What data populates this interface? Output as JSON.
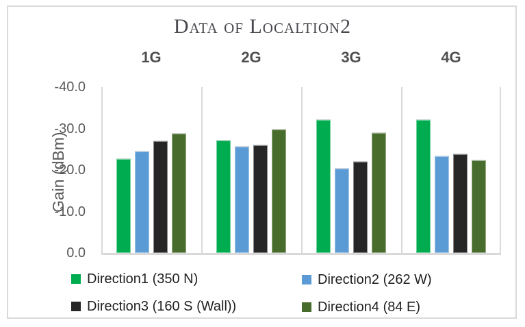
{
  "chart_data": {
    "type": "bar",
    "title": "Data of Localtion2",
    "ylabel": "Gain (dBm)",
    "xlabel": "",
    "categories": [
      "1G",
      "2G",
      "3G",
      "4G"
    ],
    "series": [
      {
        "name": "Direction1 (350 N)",
        "color": "#00AC50",
        "values": [
          -23.0,
          -27.5,
          -32.5,
          -32.5
        ]
      },
      {
        "name": "Direction2 (262 W)",
        "color": "#5B9BD5",
        "values": [
          -24.8,
          -26.0,
          -20.7,
          -23.6
        ]
      },
      {
        "name": "Direction3 (160 S (Wall))",
        "color": "#262626",
        "values": [
          -27.4,
          -26.3,
          -22.4,
          -24.1
        ]
      },
      {
        "name": "Direction4 (84 E)",
        "color": "#476C2B",
        "values": [
          -29.1,
          -30.2,
          -29.3,
          -22.6
        ]
      }
    ],
    "y_ticks": [
      "-40.0",
      "-30.0",
      "-20.0",
      "-10.0",
      "0.0"
    ],
    "ylim": [
      0,
      -40
    ],
    "axis_inverted": true,
    "grid": false,
    "legend_position": "bottom",
    "legend_columns": 2
  },
  "colors": {
    "frame_border": "#D9D9D9",
    "axis_line": "#D9D9D9",
    "panel_separator": "#D9D9D9",
    "title_text": "#47484E",
    "category_label_text": "#4F4F4F",
    "tick_label_text": "#595959",
    "legend_text": "#1F1F1F"
  }
}
